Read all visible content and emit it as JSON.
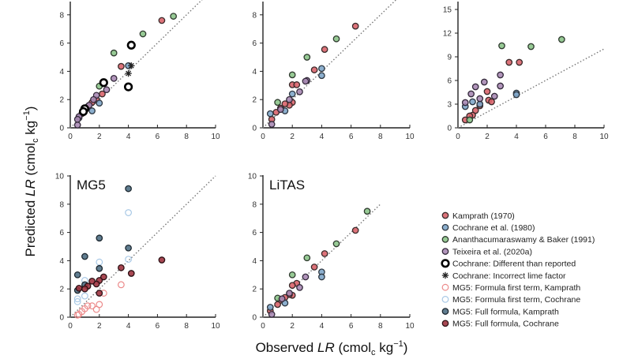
{
  "axis_labels": {
    "y": {
      "pre": "Predicted ",
      "var": "LR",
      "mid": " (cmol",
      "sub": "c",
      "unit": " kg",
      "sup": "−1",
      "post": ")"
    },
    "x": {
      "pre": "Observed ",
      "var": "LR",
      "mid": " (cmol",
      "sub": "c",
      "unit": " kg",
      "sup": "−1",
      "post": ")"
    }
  },
  "styles": {
    "Kamprath (1970)": {
      "fill": "#d9646c",
      "stroke": "#3a2a2a",
      "shape": "circle"
    },
    "Cochrane et al. (1980)": {
      "fill": "#7fa6c9",
      "stroke": "#2d3640",
      "shape": "circle"
    },
    "Ananthacumaraswamy & Baker (1991)": {
      "fill": "#8cc48a",
      "stroke": "#2e3a2e",
      "shape": "circle"
    },
    "Teixeira et al. (2020a)": {
      "fill": "#a88ab4",
      "stroke": "#33293a",
      "shape": "circle"
    },
    "Cochrane: Different than reported": {
      "fill": "#ffffff",
      "stroke": "#000000",
      "shape": "ring"
    },
    "Cochrane: Incorrect lime factor": {
      "fill": "none",
      "stroke": "#222222",
      "shape": "asterisk"
    },
    "MG5: Formula first term, Kamprath": {
      "fill": "none",
      "stroke": "#ec8a8a",
      "shape": "open"
    },
    "MG5: Formula first term, Cochrane": {
      "fill": "none",
      "stroke": "#a9c9e6",
      "shape": "open"
    },
    "MG5: Full formula, Kamprath": {
      "fill": "#4f6f84",
      "stroke": "#1d2830",
      "shape": "circle"
    },
    "MG5: Full formula, Cochrane": {
      "fill": "#9e3440",
      "stroke": "#2c1014",
      "shape": "circle"
    }
  },
  "legend": {
    "placement": "right",
    "items": [
      "Kamprath (1970)",
      "Cochrane et al. (1980)",
      "Ananthacumaraswamy & Baker (1991)",
      "Teixeira et al. (2020a)",
      "Cochrane: Different than reported",
      "Cochrane: Incorrect lime factor",
      "MG5: Formula first term, Kamprath",
      "MG5: Formula first term, Cochrane",
      "MG5: Full formula, Kamprath",
      "MG5: Full formula, Cochrane"
    ]
  },
  "chart_data": [
    {
      "type": "scatter",
      "title": "",
      "xlim": [
        0,
        10
      ],
      "ylim": [
        0,
        8.9
      ],
      "xticks": [
        0,
        2,
        4,
        6,
        8,
        10
      ],
      "yticks": [
        0,
        2,
        4,
        6,
        8
      ],
      "reference_line": "1:1",
      "grid": false,
      "series": [
        {
          "name": "Kamprath (1970)",
          "points": [
            [
              6.3,
              7.6
            ],
            [
              3.5,
              4.35
            ],
            [
              1.8,
              2.0
            ],
            [
              1.5,
              1.8
            ],
            [
              1.2,
              1.5
            ],
            [
              0.8,
              1.0
            ],
            [
              2.2,
              2.4
            ]
          ]
        },
        {
          "name": "Cochrane et al. (1980)",
          "points": [
            [
              4.0,
              4.4
            ],
            [
              2.0,
              1.75
            ],
            [
              1.5,
              1.2
            ],
            [
              0.6,
              0.7
            ]
          ]
        },
        {
          "name": "Ananthacumaraswamy & Baker (1991)",
          "points": [
            [
              7.1,
              7.9
            ],
            [
              5.0,
              6.65
            ],
            [
              3.0,
              5.3
            ],
            [
              2.0,
              2.95
            ],
            [
              1.0,
              1.3
            ]
          ]
        },
        {
          "name": "Teixeira et al. (2020a)",
          "points": [
            [
              3.0,
              3.5
            ],
            [
              2.5,
              2.7
            ],
            [
              1.8,
              2.3
            ],
            [
              1.6,
              2.0
            ],
            [
              1.3,
              1.6
            ],
            [
              0.6,
              0.8
            ],
            [
              0.5,
              0.2
            ],
            [
              0.5,
              0.6
            ]
          ]
        },
        {
          "name": "Cochrane: Different than reported",
          "points": [
            [
              4.2,
              5.85
            ],
            [
              4.0,
              2.9
            ],
            [
              2.3,
              3.2
            ],
            [
              1.0,
              1.35
            ],
            [
              0.9,
              1.15
            ]
          ]
        },
        {
          "name": "Cochrane: Incorrect lime factor",
          "points": [
            [
              4.0,
              3.85
            ],
            [
              4.2,
              4.4
            ]
          ]
        }
      ]
    },
    {
      "type": "scatter",
      "title": "",
      "xlim": [
        0,
        10
      ],
      "ylim": [
        0,
        8.9
      ],
      "xticks": [
        0,
        2,
        4,
        6,
        8,
        10
      ],
      "yticks": [
        0,
        2,
        4,
        6,
        8
      ],
      "reference_line": "1:1",
      "grid": false,
      "series": [
        {
          "name": "Kamprath (1970)",
          "points": [
            [
              6.3,
              7.2
            ],
            [
              4.2,
              5.55
            ],
            [
              3.5,
              4.1
            ],
            [
              2.0,
              3.05
            ],
            [
              2.3,
              3.05
            ],
            [
              2.0,
              1.8
            ],
            [
              1.8,
              1.6
            ],
            [
              1.5,
              1.7
            ],
            [
              1.2,
              1.4
            ],
            [
              0.9,
              1.1
            ],
            [
              0.6,
              0.6
            ]
          ]
        },
        {
          "name": "Cochrane et al. (1980)",
          "points": [
            [
              4.0,
              4.2
            ],
            [
              4.0,
              3.7
            ],
            [
              2.0,
              2.4
            ],
            [
              1.5,
              1.2
            ],
            [
              0.5,
              1.0
            ]
          ]
        },
        {
          "name": "Ananthacumaraswamy & Baker (1991)",
          "points": [
            [
              5.0,
              6.3
            ],
            [
              3.0,
              5.0
            ],
            [
              2.0,
              3.75
            ],
            [
              1.0,
              1.8
            ]
          ]
        },
        {
          "name": "Teixeira et al. (2020a)",
          "points": [
            [
              3.0,
              3.35
            ],
            [
              2.9,
              3.3
            ],
            [
              2.5,
              2.55
            ],
            [
              1.8,
              2.0
            ],
            [
              1.2,
              1.3
            ],
            [
              0.6,
              0.25
            ]
          ]
        }
      ]
    },
    {
      "type": "scatter",
      "title": "",
      "xlim": [
        0,
        10
      ],
      "ylim": [
        0,
        16.2
      ],
      "xticks": [
        0,
        2,
        4,
        6,
        8,
        10
      ],
      "yticks": [
        0,
        3,
        6,
        9,
        12,
        15
      ],
      "reference_line": "1:1",
      "grid": false,
      "series": [
        {
          "name": "Kamprath (1970)",
          "points": [
            [
              3.5,
              8.3
            ],
            [
              4.2,
              8.3
            ],
            [
              2.0,
              4.6
            ],
            [
              2.1,
              3.5
            ],
            [
              2.3,
              3.3
            ],
            [
              1.5,
              2.8
            ],
            [
              1.2,
              2.2
            ],
            [
              1.0,
              1.6
            ],
            [
              0.8,
              1.5
            ],
            [
              0.5,
              1.0
            ]
          ]
        },
        {
          "name": "Cochrane et al. (1980)",
          "points": [
            [
              4.0,
              4.4
            ],
            [
              4.0,
              4.2
            ],
            [
              1.5,
              3.0
            ],
            [
              1.0,
              3.3
            ],
            [
              0.5,
              2.7
            ]
          ]
        },
        {
          "name": "Ananthacumaraswamy & Baker (1991)",
          "points": [
            [
              7.1,
              11.2
            ],
            [
              5.0,
              10.3
            ],
            [
              3.0,
              10.4
            ],
            [
              0.8,
              1.0
            ]
          ]
        },
        {
          "name": "Teixeira et al. (2020a)",
          "points": [
            [
              2.9,
              6.7
            ],
            [
              2.9,
              5.3
            ],
            [
              1.8,
              5.8
            ],
            [
              1.2,
              5.2
            ],
            [
              0.9,
              4.3
            ],
            [
              2.5,
              4.0
            ],
            [
              1.5,
              3.7
            ],
            [
              0.5,
              3.2
            ]
          ]
        }
      ]
    },
    {
      "type": "scatter",
      "title": "MG5",
      "xlim": [
        0,
        10
      ],
      "ylim": [
        0,
        10
      ],
      "xticks": [
        0,
        2,
        4,
        6,
        8,
        10
      ],
      "yticks": [
        0,
        2,
        4,
        6,
        8,
        10
      ],
      "reference_line": "1:1",
      "grid": false,
      "series": [
        {
          "name": "MG5: Formula first term, Kamprath",
          "points": [
            [
              3.5,
              2.3
            ],
            [
              2.3,
              1.7
            ],
            [
              2.0,
              0.9
            ],
            [
              1.8,
              0.55
            ],
            [
              1.5,
              0.8
            ],
            [
              1.2,
              0.8
            ],
            [
              1.0,
              0.6
            ],
            [
              0.8,
              0.4
            ],
            [
              0.6,
              0.2
            ],
            [
              0.5,
              0.15
            ]
          ]
        },
        {
          "name": "MG5: Formula first term, Cochrane",
          "points": [
            [
              4.0,
              7.4
            ],
            [
              2.0,
              3.9
            ],
            [
              4.0,
              4.1
            ],
            [
              1.0,
              2.6
            ],
            [
              1.0,
              1.5
            ],
            [
              0.5,
              1.3
            ],
            [
              0.5,
              1.1
            ]
          ]
        },
        {
          "name": "MG5: Full formula, Kamprath",
          "points": [
            [
              4.0,
              9.1
            ],
            [
              2.0,
              5.6
            ],
            [
              1.0,
              4.3
            ],
            [
              0.5,
              3.0
            ],
            [
              4.0,
              4.9
            ],
            [
              2.0,
              3.45
            ],
            [
              1.0,
              2.3
            ],
            [
              0.5,
              1.9
            ]
          ]
        },
        {
          "name": "MG5: Full formula, Cochrane",
          "points": [
            [
              6.3,
              4.05
            ],
            [
              4.2,
              3.1
            ],
            [
              3.5,
              3.5
            ],
            [
              2.3,
              2.85
            ],
            [
              2.0,
              2.6
            ],
            [
              1.8,
              2.35
            ],
            [
              1.5,
              2.55
            ],
            [
              1.2,
              2.2
            ],
            [
              1.0,
              2.0
            ],
            [
              0.6,
              2.05
            ],
            [
              2.0,
              1.7
            ]
          ]
        }
      ]
    },
    {
      "type": "scatter",
      "title": "LiTAS",
      "xlim": [
        0,
        10
      ],
      "ylim": [
        0,
        10
      ],
      "xticks": [
        0,
        2,
        4,
        6,
        8,
        10
      ],
      "yticks": [
        0,
        2,
        4,
        6,
        8,
        10
      ],
      "reference_line": "1:1 (0–8)",
      "grid": false,
      "series": [
        {
          "name": "Kamprath (1970)",
          "points": [
            [
              6.3,
              6.15
            ],
            [
              4.2,
              4.5
            ],
            [
              3.5,
              3.55
            ],
            [
              2.3,
              2.4
            ],
            [
              2.0,
              2.25
            ],
            [
              2.0,
              1.55
            ],
            [
              1.8,
              1.6
            ],
            [
              1.5,
              1.4
            ],
            [
              1.2,
              1.2
            ],
            [
              1.0,
              0.9
            ],
            [
              0.5,
              0.45
            ]
          ]
        },
        {
          "name": "Cochrane et al. (1980)",
          "points": [
            [
              4.0,
              3.2
            ],
            [
              4.0,
              2.85
            ],
            [
              1.5,
              1.0
            ],
            [
              0.5,
              0.7
            ]
          ]
        },
        {
          "name": "Ananthacumaraswamy & Baker (1991)",
          "points": [
            [
              7.1,
              7.5
            ],
            [
              5.0,
              5.2
            ],
            [
              3.0,
              4.2
            ],
            [
              2.0,
              3.0
            ],
            [
              1.0,
              1.35
            ]
          ]
        },
        {
          "name": "Teixeira et al. (2020a)",
          "points": [
            [
              2.9,
              2.85
            ],
            [
              2.5,
              2.1
            ],
            [
              1.8,
              1.7
            ],
            [
              1.3,
              1.3
            ],
            [
              0.6,
              0.2
            ]
          ]
        }
      ]
    }
  ]
}
